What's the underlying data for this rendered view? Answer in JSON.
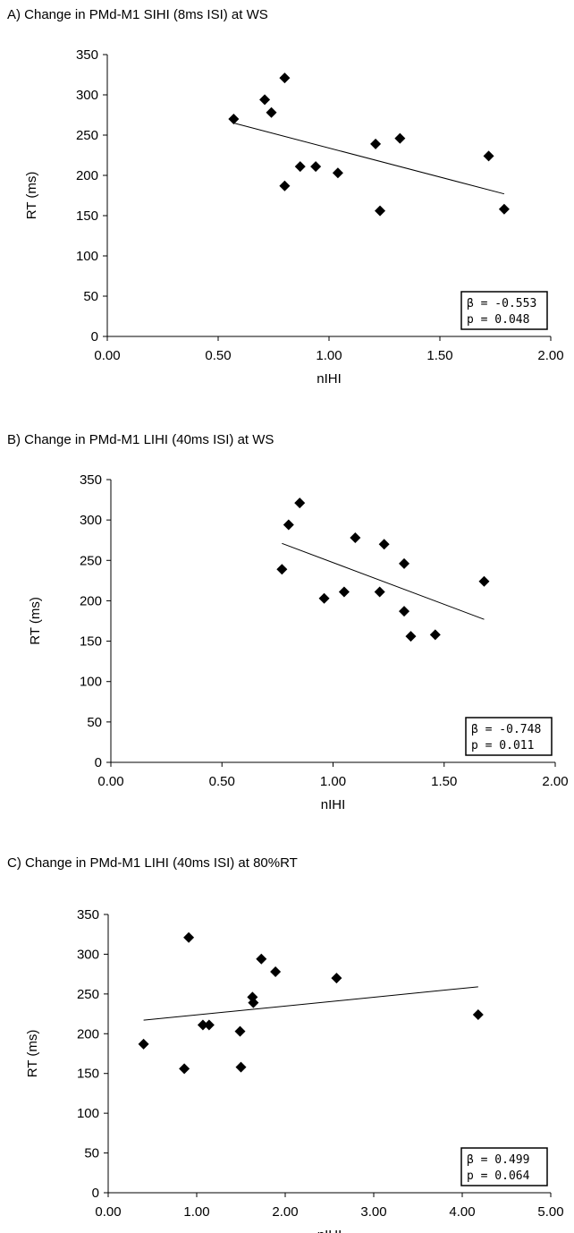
{
  "chart_data": [
    {
      "type": "scatter",
      "title": "A) Change in PMd-M1 SIHI (8ms ISI) at WS",
      "xlabel": "nIHI",
      "ylabel": "RT (ms)",
      "xlim": [
        0,
        2
      ],
      "ylim": [
        0,
        350
      ],
      "xticks": [
        "0.00",
        "0.50",
        "1.00",
        "1.50",
        "2.00"
      ],
      "yticks": [
        "0",
        "50",
        "100",
        "150",
        "200",
        "250",
        "300",
        "350"
      ],
      "grid": false,
      "points": [
        {
          "x": 0.57,
          "y": 270
        },
        {
          "x": 0.71,
          "y": 294
        },
        {
          "x": 0.74,
          "y": 278
        },
        {
          "x": 0.8,
          "y": 321
        },
        {
          "x": 0.8,
          "y": 187
        },
        {
          "x": 0.87,
          "y": 211
        },
        {
          "x": 0.94,
          "y": 211
        },
        {
          "x": 1.04,
          "y": 203
        },
        {
          "x": 1.21,
          "y": 239
        },
        {
          "x": 1.23,
          "y": 156
        },
        {
          "x": 1.32,
          "y": 246
        },
        {
          "x": 1.72,
          "y": 224
        },
        {
          "x": 1.79,
          "y": 158
        }
      ],
      "trendline": {
        "x": [
          0.57,
          1.79
        ],
        "y": [
          265,
          177
        ]
      },
      "stats": [
        "β = -0.553",
        "p = 0.048"
      ]
    },
    {
      "type": "scatter",
      "title": "B) Change in PMd-M1 LIHI (40ms ISI) at WS",
      "xlabel": "nIHI",
      "ylabel": "RT (ms)",
      "xlim": [
        0,
        2
      ],
      "ylim": [
        0,
        350
      ],
      "xticks": [
        "0.00",
        "0.50",
        "1.00",
        "1.50",
        "2.00"
      ],
      "yticks": [
        "0",
        "50",
        "100",
        "150",
        "200",
        "250",
        "300",
        "350"
      ],
      "grid": false,
      "points": [
        {
          "x": 0.77,
          "y": 239
        },
        {
          "x": 0.8,
          "y": 294
        },
        {
          "x": 0.85,
          "y": 321
        },
        {
          "x": 0.96,
          "y": 203
        },
        {
          "x": 1.05,
          "y": 211
        },
        {
          "x": 1.1,
          "y": 278
        },
        {
          "x": 1.21,
          "y": 211
        },
        {
          "x": 1.23,
          "y": 270
        },
        {
          "x": 1.32,
          "y": 246
        },
        {
          "x": 1.32,
          "y": 187
        },
        {
          "x": 1.35,
          "y": 156
        },
        {
          "x": 1.46,
          "y": 158
        },
        {
          "x": 1.68,
          "y": 224
        }
      ],
      "trendline": {
        "x": [
          0.77,
          1.68
        ],
        "y": [
          271,
          177
        ]
      },
      "stats": [
        "β = -0.748",
        "p = 0.011"
      ]
    },
    {
      "type": "scatter",
      "title": "C) Change in PMd-M1 LIHI (40ms ISI) at 80%RT",
      "xlabel": "nIHI",
      "ylabel": "RT (ms)",
      "xlim": [
        0,
        5
      ],
      "ylim": [
        0,
        350
      ],
      "xticks": [
        "0.00",
        "1.00",
        "2.00",
        "3.00",
        "4.00",
        "5.00"
      ],
      "yticks": [
        "0",
        "50",
        "100",
        "150",
        "200",
        "250",
        "300",
        "350"
      ],
      "grid": false,
      "points": [
        {
          "x": 0.4,
          "y": 187
        },
        {
          "x": 0.86,
          "y": 156
        },
        {
          "x": 0.91,
          "y": 321
        },
        {
          "x": 1.07,
          "y": 211
        },
        {
          "x": 1.14,
          "y": 211
        },
        {
          "x": 1.49,
          "y": 203
        },
        {
          "x": 1.5,
          "y": 158
        },
        {
          "x": 1.63,
          "y": 246
        },
        {
          "x": 1.64,
          "y": 239
        },
        {
          "x": 1.73,
          "y": 294
        },
        {
          "x": 1.89,
          "y": 278
        },
        {
          "x": 2.58,
          "y": 270
        },
        {
          "x": 4.18,
          "y": 224
        }
      ],
      "trendline": {
        "x": [
          0.4,
          4.18
        ],
        "y": [
          217,
          259
        ]
      },
      "stats": [
        "β = 0.499",
        "p = 0.064"
      ]
    }
  ]
}
